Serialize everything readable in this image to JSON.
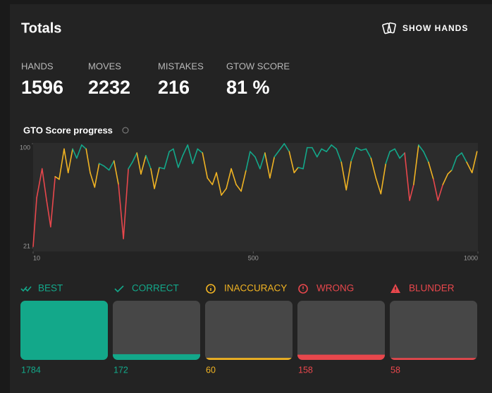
{
  "header": {
    "title": "Totals",
    "action": "SHOW HANDS"
  },
  "stats": [
    {
      "label": "HANDS",
      "value": "1596"
    },
    {
      "label": "MOVES",
      "value": "2232"
    },
    {
      "label": "MISTAKES",
      "value": "216"
    },
    {
      "label": "GTOW SCORE",
      "value": "81 %"
    }
  ],
  "chart_data": {
    "type": "line",
    "title": "GTO Score progress",
    "x": [
      10,
      18,
      30,
      40,
      49,
      59,
      68,
      79,
      88,
      98,
      107,
      118,
      128,
      137,
      147,
      157,
      168,
      179,
      190,
      200,
      211,
      222,
      231,
      241,
      250,
      261,
      272,
      280,
      291,
      302,
      313,
      322,
      333,
      343,
      354,
      365,
      376,
      387,
      398,
      409,
      418,
      429,
      440,
      451,
      462,
      473,
      484,
      493,
      504,
      515,
      526,
      537,
      547,
      558,
      569,
      580,
      591,
      600,
      611,
      620,
      631,
      642,
      652,
      663,
      674,
      685,
      696,
      707,
      718,
      729,
      740,
      751,
      762,
      773,
      784,
      795,
      804,
      815,
      826,
      837,
      848,
      857,
      868,
      879,
      890,
      901,
      911,
      922,
      933,
      942,
      953,
      964,
      975,
      987,
      998
    ],
    "series": [
      {
        "values": [
          22,
          59,
          81,
          57,
          37,
          75,
          73,
          96,
          78,
          96,
          89,
          99,
          96,
          78,
          67,
          85,
          83,
          80,
          87,
          69,
          28,
          81,
          86,
          93,
          77,
          91,
          81,
          66,
          82,
          81,
          94,
          96,
          82,
          91,
          99,
          85,
          96,
          93,
          74,
          69,
          78,
          61,
          66,
          81,
          69,
          64,
          80,
          94,
          90,
          81,
          93,
          74,
          90,
          95,
          100,
          94,
          78,
          82,
          81,
          97,
          97,
          90,
          96,
          94,
          99,
          96,
          86,
          65,
          87,
          97,
          95,
          96,
          89,
          74,
          62,
          85,
          94,
          96,
          89,
          93,
          57,
          69,
          99,
          94,
          86,
          73,
          57,
          69,
          77,
          80,
          90,
          93,
          86,
          78,
          94
        ],
        "colors": [
          "#e8474c",
          "#e8474c",
          "#13a88a",
          "#e8474c",
          "#e8474c",
          "#f0b323",
          "#f0b323",
          "#13a88a",
          "#f0b323",
          "#13a88a",
          "#13a88a",
          "#13a88a",
          "#13a88a",
          "#f0b323",
          "#f0b323",
          "#13a88a",
          "#13a88a",
          "#13a88a",
          "#13a88a",
          "#f0b323",
          "#e8474c",
          "#13a88a",
          "#13a88a",
          "#13a88a",
          "#f0b323",
          "#13a88a",
          "#13a88a",
          "#f0b323",
          "#13a88a",
          "#13a88a",
          "#13a88a",
          "#13a88a",
          "#13a88a",
          "#13a88a",
          "#13a88a",
          "#13a88a",
          "#13a88a",
          "#13a88a",
          "#f0b323",
          "#f0b323",
          "#f0b323",
          "#f0b323",
          "#f0b323",
          "#13a88a",
          "#f0b323",
          "#f0b323",
          "#13a88a",
          "#13a88a",
          "#13a88a",
          "#13a88a",
          "#13a88a",
          "#f0b323",
          "#13a88a",
          "#13a88a",
          "#13a88a",
          "#13a88a",
          "#f0b323",
          "#13a88a",
          "#13a88a",
          "#13a88a",
          "#13a88a",
          "#13a88a",
          "#13a88a",
          "#13a88a",
          "#13a88a",
          "#13a88a",
          "#13a88a",
          "#f0b323",
          "#13a88a",
          "#13a88a",
          "#13a88a",
          "#13a88a",
          "#13a88a",
          "#f0b323",
          "#f0b323",
          "#13a88a",
          "#13a88a",
          "#13a88a",
          "#13a88a",
          "#13a88a",
          "#e8474c",
          "#f0b323",
          "#13a88a",
          "#13a88a",
          "#13a88a",
          "#f0b323",
          "#e8474c",
          "#f0b323",
          "#f0b323",
          "#13a88a",
          "#13a88a",
          "#13a88a",
          "#13a88a",
          "#f0b323",
          "#13a88a"
        ]
      }
    ],
    "xlim": [
      10,
      1000
    ],
    "ylim": [
      21,
      100
    ],
    "xticks": [
      10,
      500,
      1000
    ],
    "yticks": [
      21,
      100
    ]
  },
  "categories": [
    {
      "label": "BEST",
      "value": 1784,
      "color": "#13a88a"
    },
    {
      "label": "CORRECT",
      "value": 172,
      "color": "#13a88a"
    },
    {
      "label": "INACCURACY",
      "value": 60,
      "color": "#f0b323"
    },
    {
      "label": "WRONG",
      "value": 158,
      "color": "#e8474c"
    },
    {
      "label": "BLUNDER",
      "value": 58,
      "color": "#e8474c"
    }
  ]
}
